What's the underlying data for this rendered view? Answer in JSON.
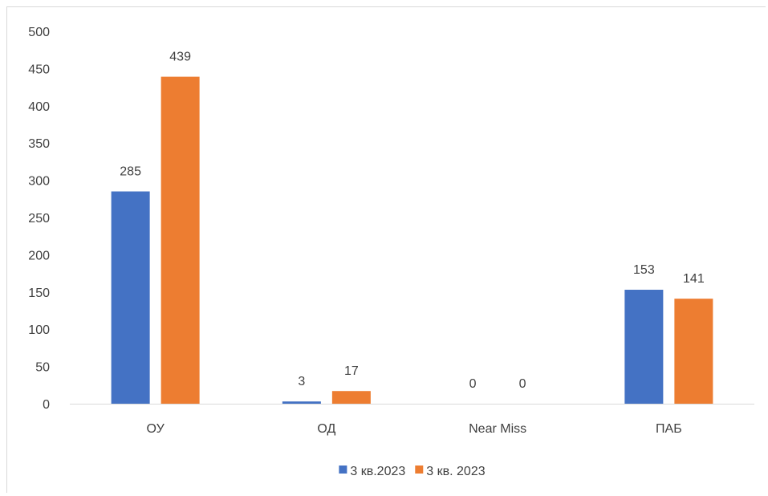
{
  "chart_data": {
    "type": "bar",
    "categories": [
      "ОУ",
      "ОД",
      "Near Miss",
      "ПАБ"
    ],
    "series": [
      {
        "name": "3 кв.2023",
        "values": [
          285,
          3,
          0,
          153
        ],
        "color": "#4472c4"
      },
      {
        "name": "3 кв. 2023",
        "values": [
          439,
          17,
          0,
          141
        ],
        "color": "#ed7d31"
      }
    ],
    "y_ticks": [
      "0",
      "50",
      "100",
      "150",
      "200",
      "250",
      "300",
      "350",
      "400",
      "450",
      "500"
    ],
    "ylim": [
      0,
      500
    ],
    "grid": false,
    "legend_position": "bottom",
    "data_labels": true
  }
}
